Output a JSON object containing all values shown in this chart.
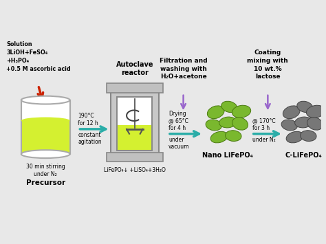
{
  "bg_color": "#e8e8e8",
  "white": "#ffffff",
  "beaker_fill": "#d4f030",
  "beaker_stroke": "#aaaaaa",
  "arrow_red": "#cc2200",
  "arrow_teal": "#2aada8",
  "arrow_purple": "#9966cc",
  "gray_particle": "#777777",
  "green_particle": "#7ab82e",
  "solution_text": "Solution\n3LiOH+FeSO₄\n+H₃PO₄\n+0.5 M ascorbic acid",
  "precursor_label": "Precursor",
  "stirring_text": "30 min stirring\nunder N₂",
  "autoclave_label": "Autoclave\nreactor",
  "condition1_text": "190°C\nfor 12 h",
  "condition1b_text": "constant\nagitation",
  "reaction_text": "LiFePO₄↓ +LiSO₄+3H₂O",
  "filtration_text": "Filtration and\nwashing with\nH₂O+acetone",
  "drying_text": "Drying\n@ 65°C\nfor 4 h",
  "vacuum_text": "under\nvacuum",
  "nano_label": "Nano LiFePO₄",
  "coating_text": "Coating\nmixing with\n10 wt.%\nlactose",
  "condition2_text": "@ 170°C\nfor 3 h",
  "n2_text": "under N₂",
  "clipo_label": "C-LiFePO₄"
}
